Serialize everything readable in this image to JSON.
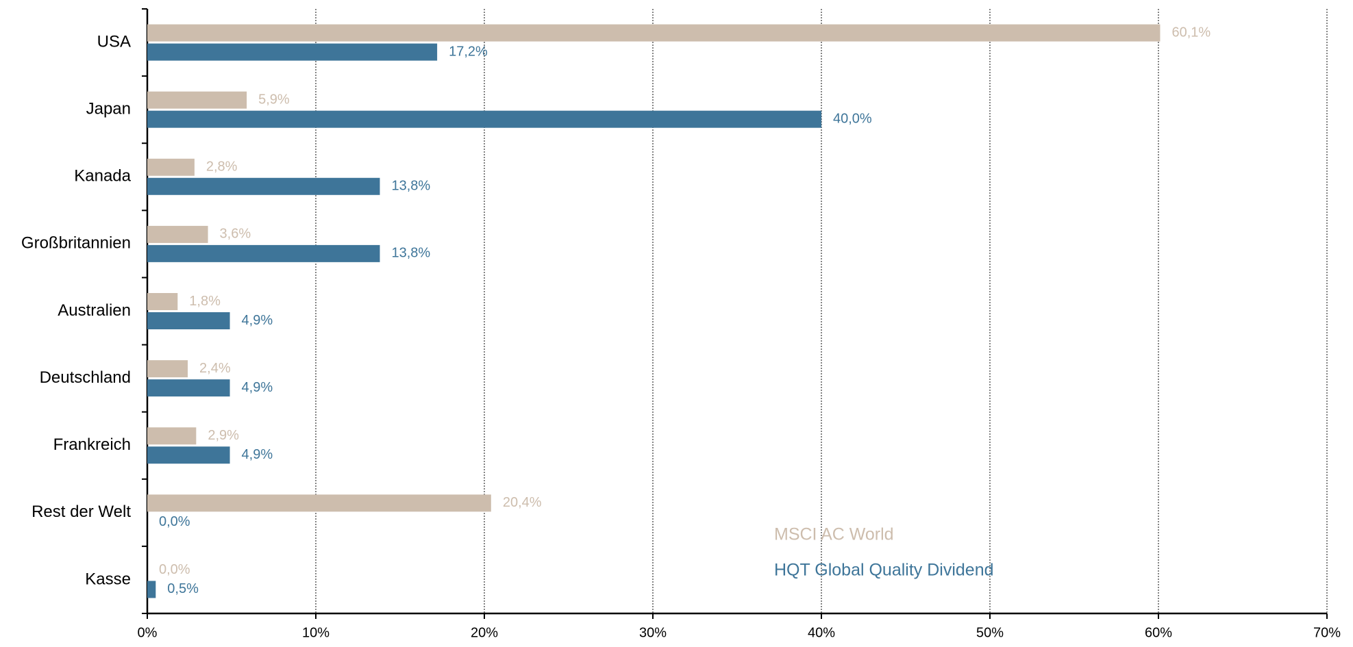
{
  "chart_data": {
    "type": "bar",
    "orientation": "horizontal",
    "categories": [
      "USA",
      "Japan",
      "Kanada",
      "Großbritannien",
      "Australien",
      "Deutschland",
      "Frankreich",
      "Rest der Welt",
      "Kasse"
    ],
    "series": [
      {
        "name": "MSCI AC World",
        "color": "#cdbdad",
        "values": [
          60.1,
          5.9,
          2.8,
          3.6,
          1.8,
          2.4,
          2.9,
          20.4,
          0.0
        ],
        "value_labels": [
          "60,1%",
          "5,9%",
          "2,8%",
          "3,6%",
          "1,8%",
          "2,4%",
          "2,9%",
          "20,4%",
          "0,0%"
        ]
      },
      {
        "name": "HQT Global Quality Dividend",
        "color": "#3e7599",
        "values": [
          17.2,
          40.0,
          13.8,
          13.8,
          4.9,
          4.9,
          4.9,
          0.0,
          0.5
        ],
        "value_labels": [
          "17,2%",
          "40,0%",
          "13,8%",
          "13,8%",
          "4,9%",
          "4,9%",
          "4,9%",
          "0,0%",
          "0,5%"
        ]
      }
    ],
    "xlim": [
      0,
      70
    ],
    "xticks": [
      {
        "value": 0,
        "label": "0%"
      },
      {
        "value": 10,
        "label": "10%"
      },
      {
        "value": 20,
        "label": "20%"
      },
      {
        "value": 30,
        "label": "30%"
      },
      {
        "value": 40,
        "label": "40%"
      },
      {
        "value": 50,
        "label": "50%"
      },
      {
        "value": 60,
        "label": "60%"
      },
      {
        "value": 70,
        "label": "70%"
      }
    ],
    "grid": true,
    "legend": "lower center"
  }
}
